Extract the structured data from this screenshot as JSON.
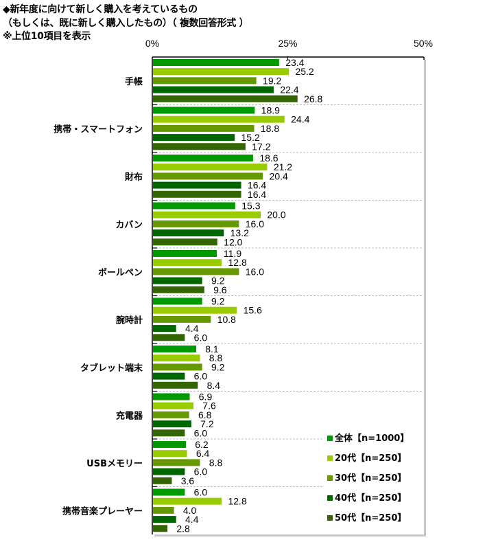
{
  "title_lines": [
    "◆新年度に向けて新しく購入を考えているもの",
    "（もしくは、既に新しく購入したもの）（ 複数回答形式 ）",
    "※上位10項目を表示"
  ],
  "chart_data": {
    "type": "bar",
    "orientation": "horizontal",
    "title": "◆新年度に向けて新しく購入を考えているもの（もしくは、既に新しく購入したもの）（ 複数回答形式 ）",
    "subtitle": "※上位10項目を表示",
    "xlabel": "",
    "ylabel": "",
    "xlim": [
      0,
      50
    ],
    "ticks": [
      0,
      25,
      50
    ],
    "tick_labels": [
      "0%",
      "25%",
      "50%"
    ],
    "grid": false,
    "legend_position": "bottom-right",
    "categories": [
      "手帳",
      "携帯・スマートフォン",
      "財布",
      "カバン",
      "ボールペン",
      "腕時計",
      "タブレット端末",
      "充電器",
      "USBメモリー",
      "携帯音楽プレーヤー"
    ],
    "series": [
      {
        "name": "全体【n=1000】",
        "color": "#009900",
        "values": [
          23.4,
          18.9,
          18.6,
          15.3,
          11.9,
          9.2,
          8.1,
          6.9,
          6.2,
          6.0
        ]
      },
      {
        "name": "20代【n=250】",
        "color": "#99cc00",
        "values": [
          25.2,
          24.4,
          21.2,
          20.0,
          12.8,
          15.6,
          8.8,
          7.6,
          6.4,
          12.8
        ]
      },
      {
        "name": "30代【n=250】",
        "color": "#669900",
        "values": [
          19.2,
          18.8,
          20.4,
          16.0,
          16.0,
          10.8,
          9.2,
          6.8,
          8.8,
          4.0
        ]
      },
      {
        "name": "40代【n=250】",
        "color": "#006600",
        "values": [
          22.4,
          15.2,
          16.4,
          13.2,
          9.2,
          4.4,
          6.0,
          7.2,
          6.0,
          4.4
        ]
      },
      {
        "name": "50代【n=250】",
        "color": "#336600",
        "values": [
          26.8,
          17.2,
          16.4,
          12.0,
          9.6,
          6.0,
          8.4,
          6.0,
          3.6,
          2.8
        ]
      }
    ],
    "value_labels": [
      [
        "23.4",
        "18.9",
        "18.6",
        "15.3",
        "11.9",
        "9.2",
        "8.1",
        "6.9",
        "6.2",
        "6.0"
      ],
      [
        "25.2",
        "24.4",
        "21.2",
        "20.0",
        "12.8",
        "15.6",
        "8.8",
        "7.6",
        "6.4",
        "12.8"
      ],
      [
        "19.2",
        "18.8",
        "20.4",
        "16.0",
        "16.0",
        "10.8",
        "9.2",
        "6.8",
        "8.8",
        "4.0"
      ],
      [
        "22.4",
        "15.2",
        "16.4",
        "13.2",
        "9.2",
        "4.4",
        "6.0",
        "7.2",
        "6.0",
        "4.4"
      ],
      [
        "26.8",
        "17.2",
        "16.4",
        "12.0",
        "9.6",
        "6.0",
        "8.4",
        "6.0",
        "3.6",
        "2.8"
      ]
    ]
  }
}
